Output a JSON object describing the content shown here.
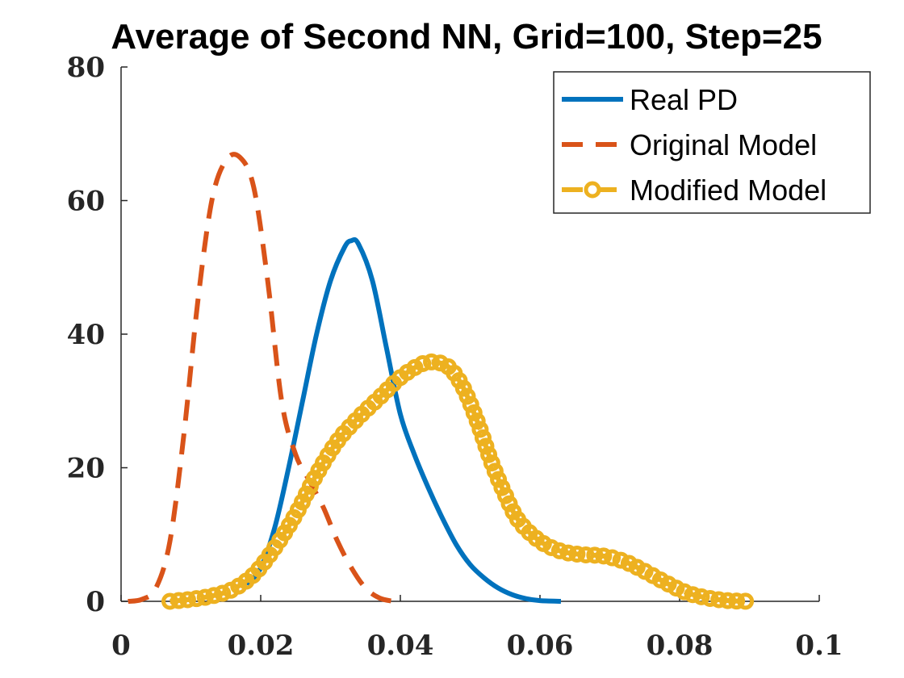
{
  "chart_data": {
    "type": "line",
    "title": "Average of Second NN, Grid=100, Step=25",
    "xlabel": "",
    "ylabel": "",
    "xlim": [
      0,
      0.1
    ],
    "ylim": [
      0,
      80
    ],
    "xticks": [
      0,
      0.02,
      0.04,
      0.06,
      0.08,
      0.1
    ],
    "xtick_labels": [
      "0",
      "0.02",
      "0.04",
      "0.06",
      "0.08",
      "0.1"
    ],
    "yticks": [
      0,
      20,
      40,
      60,
      80
    ],
    "ytick_labels": [
      "0",
      "20",
      "40",
      "60",
      "80"
    ],
    "grid": false,
    "legend_position": "top-right",
    "series": [
      {
        "name": "Real PD",
        "style": "solid",
        "color": "#0072BD",
        "x": [
          0.018,
          0.02,
          0.022,
          0.024,
          0.026,
          0.028,
          0.03,
          0.032,
          0.033,
          0.034,
          0.036,
          0.038,
          0.04,
          0.042,
          0.044,
          0.046,
          0.048,
          0.05,
          0.052,
          0.054,
          0.056,
          0.058,
          0.06,
          0.063
        ],
        "y": [
          2.5,
          5,
          11,
          20,
          30,
          40,
          48,
          53,
          54,
          53.5,
          48,
          38,
          28,
          22,
          17,
          12.5,
          8.5,
          5.5,
          3.5,
          2,
          1,
          0.4,
          0.1,
          0
        ]
      },
      {
        "name": "Original Model",
        "style": "dashed",
        "color": "#D95319",
        "x": [
          0.001,
          0.003,
          0.005,
          0.007,
          0.009,
          0.011,
          0.013,
          0.015,
          0.017,
          0.019,
          0.021,
          0.023,
          0.025,
          0.027,
          0.029,
          0.031,
          0.033,
          0.035,
          0.037,
          0.039
        ],
        "y": [
          0,
          0.3,
          2,
          9,
          25,
          45,
          60,
          66,
          66.5,
          62,
          48,
          30,
          22,
          18,
          14,
          9,
          5,
          2,
          0.5,
          0
        ]
      },
      {
        "name": "Modified Model",
        "style": "dash-circle",
        "color": "#EDB120",
        "x": [
          0.007,
          0.01,
          0.013,
          0.016,
          0.019,
          0.022,
          0.025,
          0.028,
          0.031,
          0.034,
          0.037,
          0.04,
          0.043,
          0.045,
          0.047,
          0.049,
          0.051,
          0.053,
          0.055,
          0.057,
          0.06,
          0.063,
          0.066,
          0.069,
          0.072,
          0.075,
          0.078,
          0.081,
          0.084,
          0.087,
          0.09
        ],
        "y": [
          0,
          0.3,
          0.8,
          1.8,
          4,
          8,
          13,
          19,
          24,
          27.5,
          30.5,
          33.5,
          35.5,
          35.8,
          35,
          32,
          27,
          21,
          16,
          12,
          9,
          7.5,
          7,
          6.8,
          6,
          4.5,
          2.8,
          1.3,
          0.5,
          0.1,
          0
        ]
      }
    ]
  }
}
